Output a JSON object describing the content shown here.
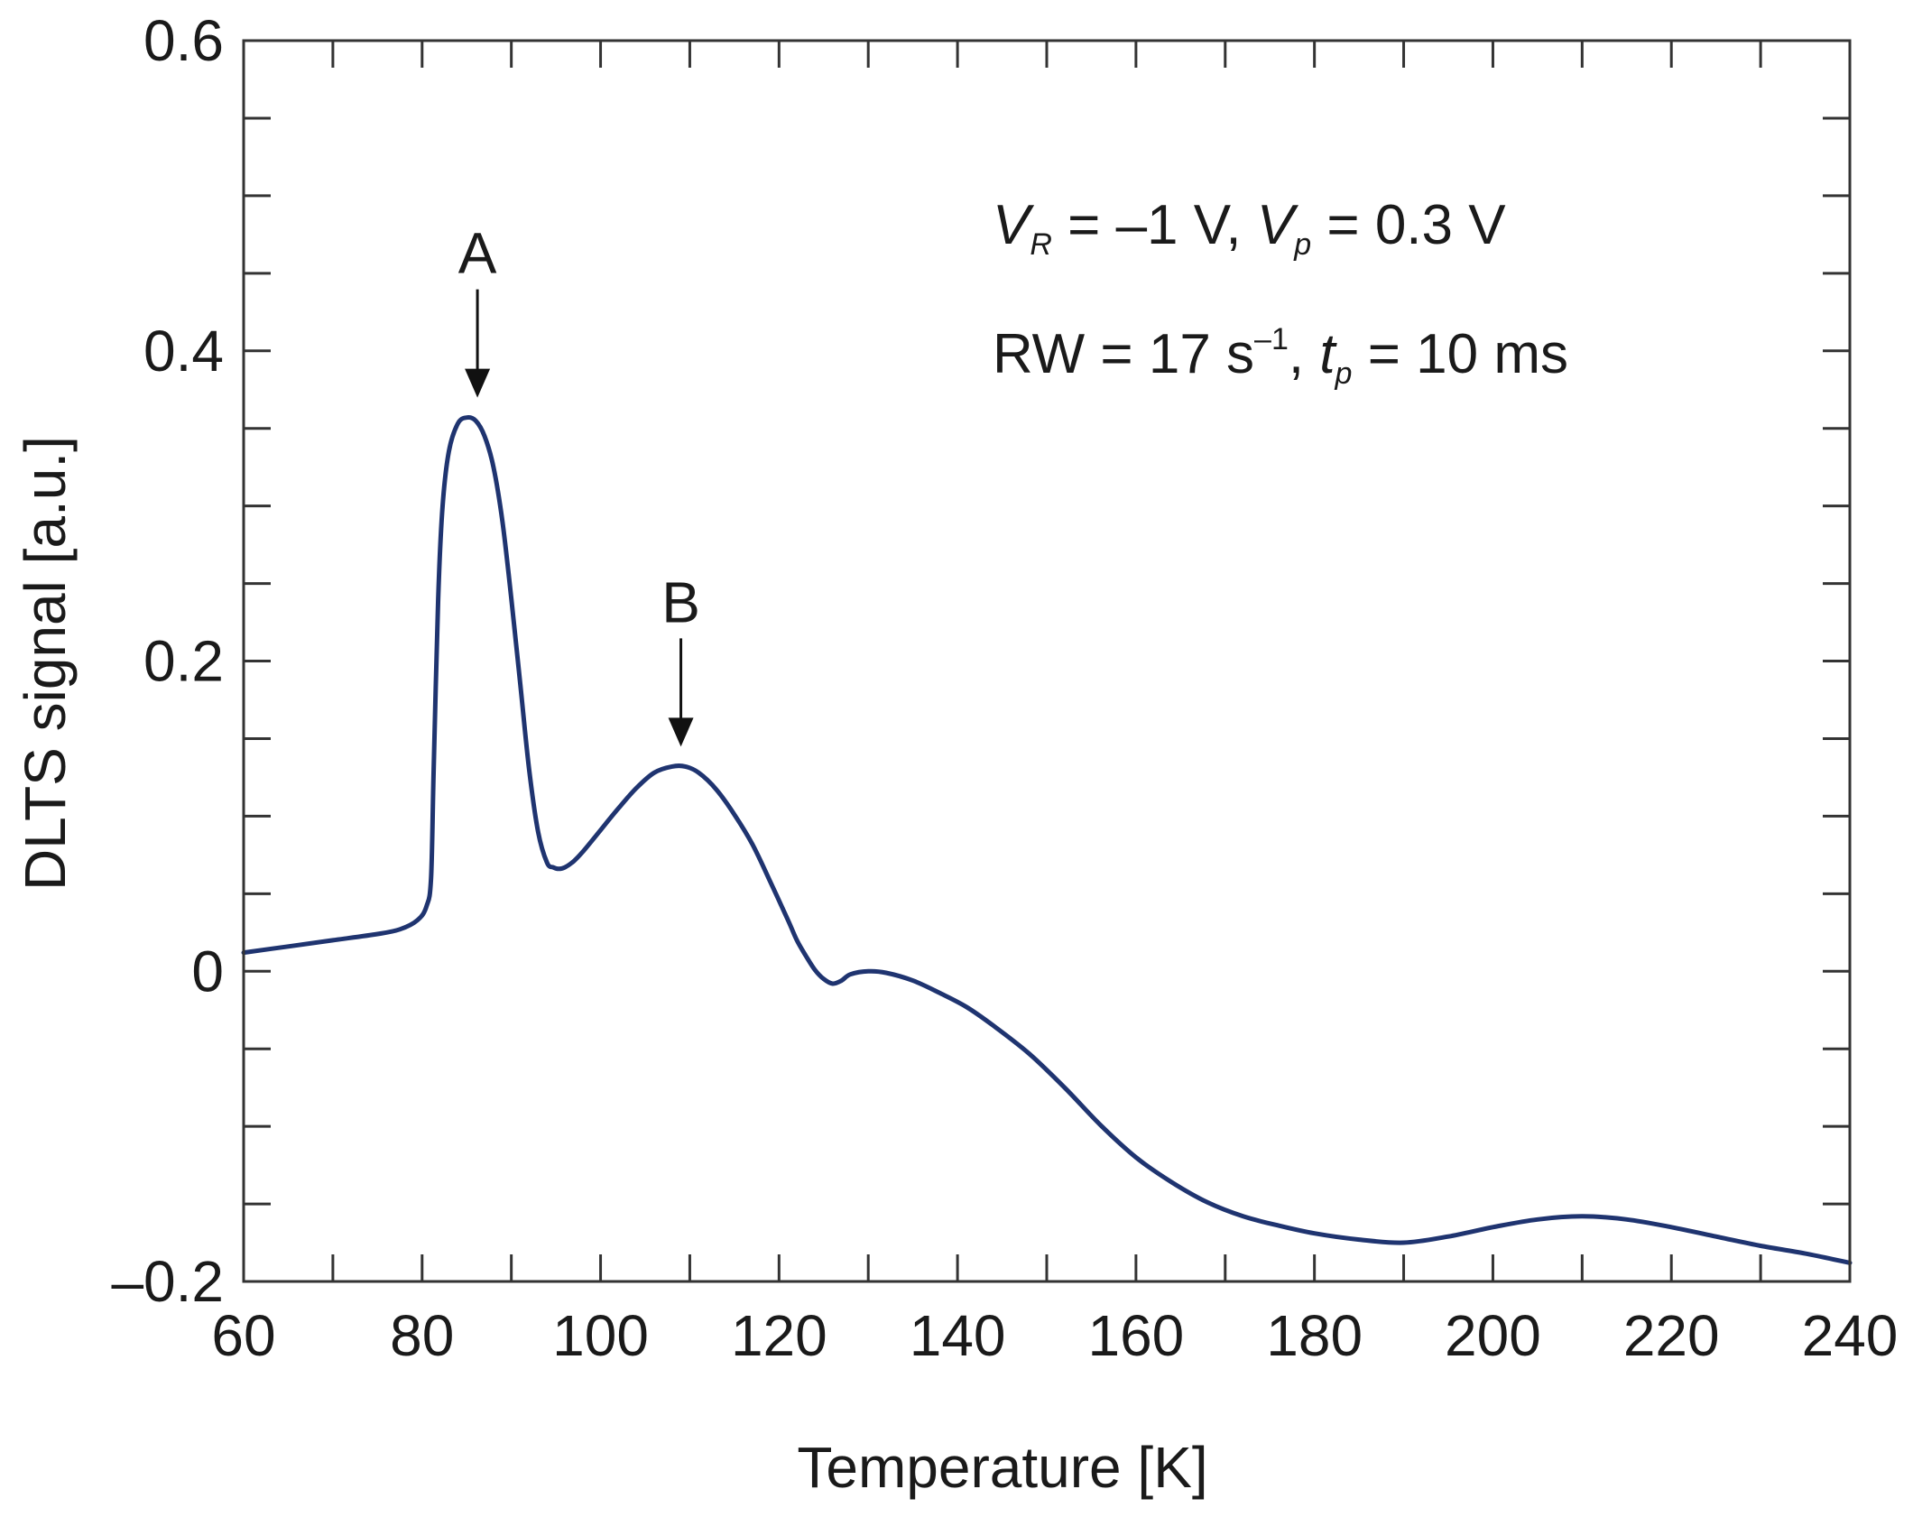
{
  "chart_data": {
    "type": "line",
    "title": "",
    "xlabel": "Temperature [K]",
    "ylabel": "DLTS signal [a.u.]",
    "xlim": [
      60,
      240
    ],
    "ylim": [
      -0.2,
      0.6
    ],
    "x_ticks": [
      60,
      80,
      100,
      120,
      140,
      160,
      180,
      200,
      220,
      240
    ],
    "x_tick_labels": [
      "60",
      "80",
      "100",
      "120",
      "140",
      "160",
      "180",
      "200",
      "220",
      "240"
    ],
    "y_ticks": [
      -0.2,
      0,
      0.2,
      0.4,
      0.6
    ],
    "y_tick_labels": [
      "–0.2",
      "0",
      "0.2",
      "0.4",
      "0.6"
    ],
    "grid": false,
    "line_color": "#1f3470",
    "series": [
      {
        "name": "DLTS signal",
        "x": [
          60,
          65,
          70,
          75,
          77.5,
          79.5,
          80.5,
          81,
          81.3,
          81.8,
          82.3,
          83,
          84,
          85,
          86,
          87,
          88,
          89,
          90,
          91,
          92,
          93,
          94,
          94.7,
          95.3,
          96,
          97,
          98,
          100,
          102,
          104,
          106,
          108,
          109.5,
          111,
          113,
          115,
          117,
          119,
          121,
          122,
          123,
          124,
          125,
          126,
          127,
          128,
          130,
          132,
          135,
          138,
          141,
          144,
          148,
          152,
          156,
          160,
          164,
          168,
          172,
          176,
          180,
          185,
          190,
          195,
          200,
          205,
          210,
          215,
          220,
          225,
          230,
          235,
          240
        ],
        "y": [
          0.012,
          0.016,
          0.02,
          0.024,
          0.027,
          0.033,
          0.042,
          0.06,
          0.13,
          0.24,
          0.3,
          0.335,
          0.353,
          0.357,
          0.355,
          0.345,
          0.325,
          0.29,
          0.24,
          0.185,
          0.13,
          0.09,
          0.07,
          0.067,
          0.066,
          0.067,
          0.071,
          0.077,
          0.091,
          0.105,
          0.118,
          0.128,
          0.132,
          0.132,
          0.128,
          0.117,
          0.101,
          0.082,
          0.058,
          0.033,
          0.02,
          0.01,
          0.001,
          -0.005,
          -0.008,
          -0.006,
          -0.002,
          0.0,
          -0.001,
          -0.006,
          -0.014,
          -0.023,
          -0.035,
          -0.053,
          -0.075,
          -0.099,
          -0.12,
          -0.136,
          -0.149,
          -0.158,
          -0.164,
          -0.169,
          -0.173,
          -0.175,
          -0.171,
          -0.165,
          -0.16,
          -0.158,
          -0.16,
          -0.165,
          -0.171,
          -0.177,
          -0.182,
          -0.188
        ]
      }
    ],
    "annotations": [
      {
        "label": "A",
        "x": 86.2,
        "y": 0.357
      },
      {
        "label": "B",
        "x": 109,
        "y": 0.132
      }
    ]
  },
  "params": {
    "line1": {
      "vr_var": "V",
      "vr_sub": "R",
      "vr_val": " = –1 V, ",
      "vp_var": "V",
      "vp_sub": "p",
      "vp_val": " = 0.3 V"
    },
    "line2": {
      "rw_text": "RW = 17 s",
      "rw_sup": "–1",
      "sep": ", ",
      "tp_var": "t",
      "tp_sub": "p",
      "tp_val": " = 10 ms"
    }
  }
}
